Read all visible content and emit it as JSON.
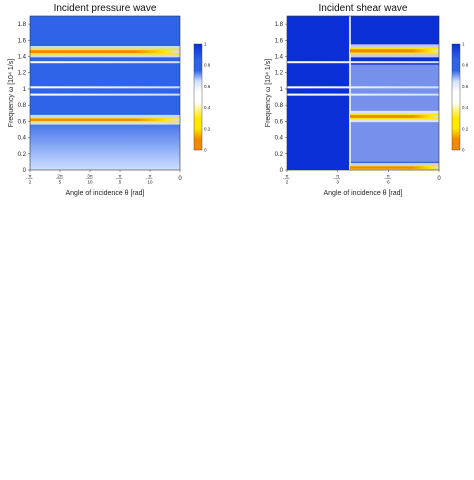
{
  "figure": {
    "colors": {
      "deep_blue": "#0a2fd6",
      "mid_blue": "#2f63e8",
      "light_blue": "#cfe0ff",
      "white": "#ffffff",
      "yellow": "#ffe600",
      "orange": "#f08a00",
      "red": "#e00000",
      "panel_bg": "#ffffff",
      "axis": "#333333"
    }
  },
  "chart_data": [
    {
      "type": "heatmap",
      "title": "Incident pressure wave",
      "xlabel": "Angle of incidence θ [rad]",
      "ylabel": "Frequency ω [10⁴ 1/s]",
      "xlim": [
        -1.5708,
        0
      ],
      "ylim": [
        0,
        1.9
      ],
      "x_ticks": [
        {
          "value": -1.5708,
          "num": "π",
          "den": "2",
          "sign": "-"
        },
        {
          "value": -1.2566,
          "num": "2π",
          "den": "5",
          "sign": "-"
        },
        {
          "value": -0.9425,
          "num": "3π",
          "den": "10",
          "sign": "-"
        },
        {
          "value": -0.6283,
          "num": "π",
          "den": "5",
          "sign": "-"
        },
        {
          "value": -0.3142,
          "num": "π",
          "den": "10",
          "sign": "-"
        },
        {
          "value": 0,
          "num": "0",
          "den": "",
          "sign": ""
        }
      ],
      "y_ticks": [
        "0",
        "0.2",
        "0.4",
        "0.6",
        "0.8",
        "1",
        "1.2",
        "1.4",
        "1.6",
        "1.8"
      ],
      "y_tick_values": [
        0,
        0.2,
        0.4,
        0.6,
        0.8,
        1.0,
        1.2,
        1.4,
        1.6,
        1.8
      ],
      "colorbar": {
        "range": [
          0,
          1.0
        ],
        "ticks": [
          "0",
          "0.2",
          "0.4",
          "0.6",
          "0.8",
          "1"
        ],
        "tick_values": [
          0,
          0.2,
          0.4,
          0.6,
          0.8,
          1.0
        ]
      },
      "bands": [
        {
          "omega": 0.62,
          "peak": 0.0,
          "kind": "resonance",
          "width": 0.03
        },
        {
          "omega": 0.93,
          "peak": 0.95,
          "kind": "gap_edge",
          "width": 0.025
        },
        {
          "omega": 1.02,
          "peak": 0.95,
          "kind": "gap_edge",
          "width": 0.025
        },
        {
          "omega": 1.33,
          "peak": 0.95,
          "kind": "gap_edge",
          "width": 0.02
        },
        {
          "omega": 1.46,
          "peak": 0.0,
          "kind": "resonance",
          "width": 0.035
        }
      ]
    },
    {
      "type": "heatmap",
      "title": "Incident shear wave",
      "xlabel": "Angle of incidence θ [rad]",
      "ylabel": "Frequency ω [10⁴ 1/s]",
      "xlim": [
        -1.5708,
        0
      ],
      "ylim": [
        0,
        1.9
      ],
      "x_ticks": [
        {
          "value": -1.5708,
          "num": "π",
          "den": "2",
          "sign": "-"
        },
        {
          "value": -1.0472,
          "num": "π",
          "den": "3",
          "sign": "-"
        },
        {
          "value": -0.5236,
          "num": "π",
          "den": "6",
          "sign": "-"
        },
        {
          "value": 0,
          "num": "0",
          "den": "",
          "sign": ""
        }
      ],
      "y_ticks": [
        "0",
        "0.2",
        "0.4",
        "0.6",
        "0.8",
        "1",
        "1.2",
        "1.4",
        "1.6",
        "1.8"
      ],
      "y_tick_values": [
        0,
        0.2,
        0.4,
        0.6,
        0.8,
        1.0,
        1.2,
        1.4,
        1.6,
        1.8
      ],
      "colorbar": {
        "range": [
          0,
          1.0
        ],
        "ticks": [
          "0",
          "0.2",
          "0.4",
          "0.6",
          "0.8",
          "1"
        ],
        "tick_values": [
          0,
          0.2,
          0.4,
          0.6,
          0.8,
          1.0
        ]
      },
      "critical_angle": -0.92,
      "bands": [
        {
          "omega": 0.03,
          "peak": 0.0,
          "kind": "resonance",
          "width": 0.03
        },
        {
          "omega": 0.66,
          "peak": 0.0,
          "kind": "resonance",
          "width": 0.035
        },
        {
          "omega": 0.93,
          "peak": 0.95,
          "kind": "gap_edge",
          "width": 0.025
        },
        {
          "omega": 1.02,
          "peak": 0.95,
          "kind": "gap_edge",
          "width": 0.025
        },
        {
          "omega": 1.33,
          "peak": 0.9,
          "kind": "gap_edge",
          "width": 0.02
        },
        {
          "omega": 1.47,
          "peak": 0.0,
          "kind": "resonance",
          "width": 0.04
        }
      ]
    }
  ]
}
